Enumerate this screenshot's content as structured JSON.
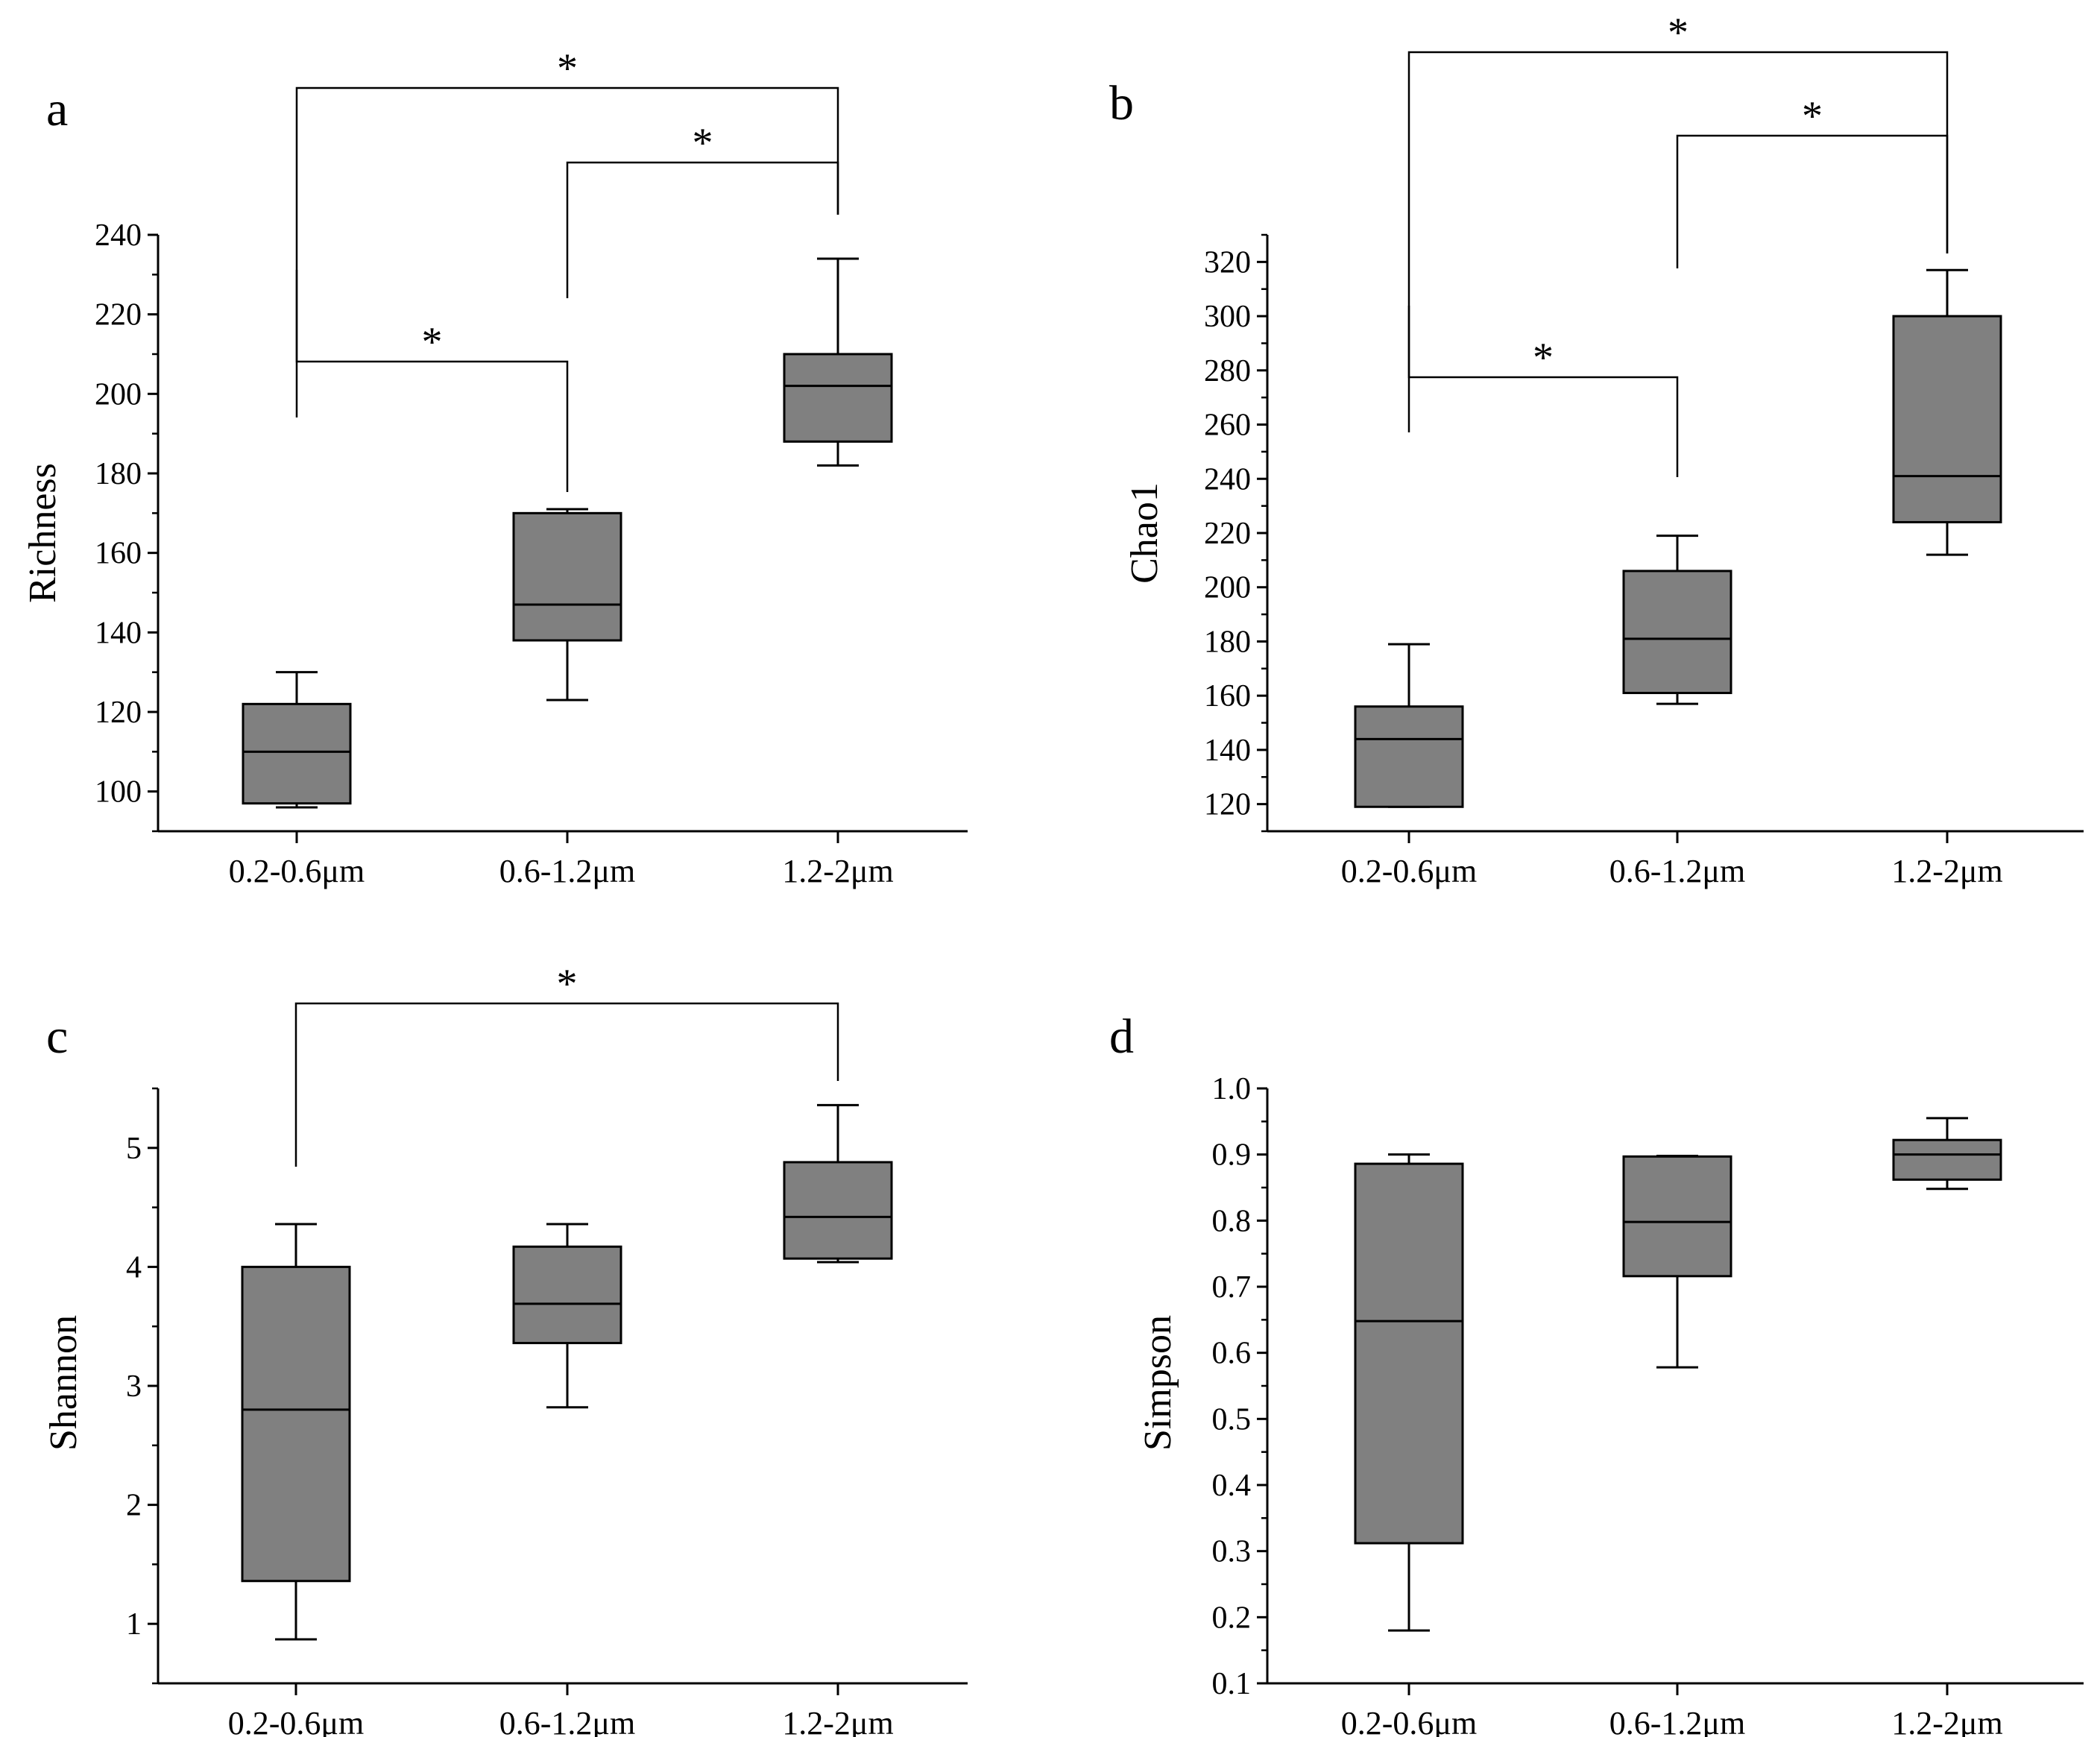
{
  "chart_data": [
    {
      "type": "box",
      "panel_label": "a",
      "ylabel": "Richness",
      "categories": [
        "0.2-0.6μm",
        "0.6-1.2μm",
        "1.2-2μm"
      ],
      "ylim": [
        90,
        240
      ],
      "yticks": [
        100,
        120,
        140,
        160,
        180,
        200,
        220,
        240
      ],
      "boxes": [
        {
          "whisker_low": 96,
          "q1": 97,
          "median": 110,
          "q3": 122,
          "whisker_high": 130
        },
        {
          "whisker_low": 123,
          "q1": 138,
          "median": 147,
          "q3": 170,
          "whisker_high": 171
        },
        {
          "whisker_low": 182,
          "q1": 188,
          "median": 202,
          "q3": 210,
          "whisker_high": 234
        }
      ],
      "significance": [
        {
          "from": 0,
          "to": 2,
          "label": "*"
        },
        {
          "from": 1,
          "to": 2,
          "label": "*"
        },
        {
          "from": 0,
          "to": 1,
          "label": "*"
        }
      ]
    },
    {
      "type": "box",
      "panel_label": "b",
      "ylabel": "Chao1",
      "categories": [
        "0.2-0.6μm",
        "0.6-1.2μm",
        "1.2-2μm"
      ],
      "ylim": [
        110,
        330
      ],
      "yticks": [
        120,
        140,
        160,
        180,
        200,
        220,
        240,
        260,
        280,
        300,
        320
      ],
      "boxes": [
        {
          "whisker_low": 119,
          "q1": 119,
          "median": 144,
          "q3": 156,
          "whisker_high": 179
        },
        {
          "whisker_low": 157,
          "q1": 161,
          "median": 181,
          "q3": 206,
          "whisker_high": 219
        },
        {
          "whisker_low": 212,
          "q1": 224,
          "median": 241,
          "q3": 300,
          "whisker_high": 317
        }
      ],
      "significance": [
        {
          "from": 0,
          "to": 2,
          "label": "*"
        },
        {
          "from": 1,
          "to": 2,
          "label": "*"
        },
        {
          "from": 0,
          "to": 1,
          "label": "*"
        }
      ]
    },
    {
      "type": "box",
      "panel_label": "c",
      "ylabel": "Shannon",
      "categories": [
        "0.2-0.6μm",
        "0.6-1.2μm",
        "1.2-2μm"
      ],
      "ylim": [
        0.5,
        5.5
      ],
      "yticks": [
        1,
        2,
        3,
        4,
        5
      ],
      "boxes": [
        {
          "whisker_low": 0.87,
          "q1": 1.36,
          "median": 2.8,
          "q3": 4.0,
          "whisker_high": 4.36
        },
        {
          "whisker_low": 2.82,
          "q1": 3.36,
          "median": 3.69,
          "q3": 4.17,
          "whisker_high": 4.36
        },
        {
          "whisker_low": 4.04,
          "q1": 4.07,
          "median": 4.42,
          "q3": 4.88,
          "whisker_high": 5.36
        }
      ],
      "significance": [
        {
          "from": 0,
          "to": 2,
          "label": "*"
        }
      ]
    },
    {
      "type": "box",
      "panel_label": "d",
      "ylabel": "Simpson",
      "categories": [
        "0.2-0.6μm",
        "0.6-1.2μm",
        "1.2-2μm"
      ],
      "ylim": [
        0.1,
        1.0
      ],
      "yticks": [
        0.1,
        0.2,
        0.3,
        0.4,
        0.5,
        0.6,
        0.7,
        0.8,
        0.9,
        1.0
      ],
      "boxes": [
        {
          "whisker_low": 0.18,
          "q1": 0.312,
          "median": 0.648,
          "q3": 0.886,
          "whisker_high": 0.9
        },
        {
          "whisker_low": 0.578,
          "q1": 0.716,
          "median": 0.798,
          "q3": 0.897,
          "whisker_high": 0.898
        },
        {
          "whisker_low": 0.848,
          "q1": 0.862,
          "median": 0.9,
          "q3": 0.922,
          "whisker_high": 0.955
        }
      ],
      "significance": []
    }
  ],
  "style": {
    "box_fill": "#808080",
    "line_color": "#000000"
  }
}
